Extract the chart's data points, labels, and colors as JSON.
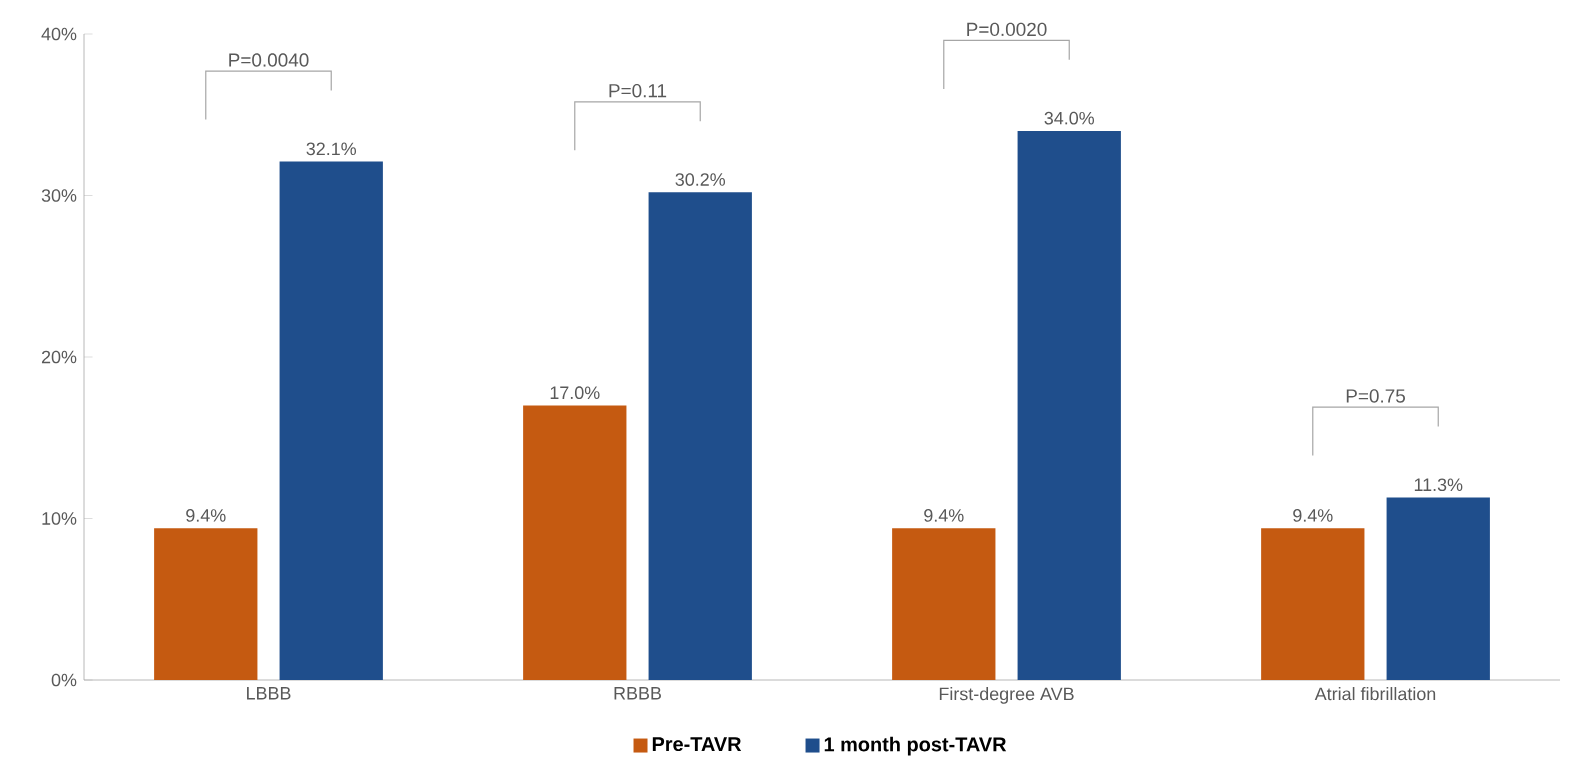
{
  "chart_data": {
    "type": "bar",
    "categories": [
      "LBBB",
      "RBBB",
      "First-degree AVB",
      "Atrial fibrillation"
    ],
    "series": [
      {
        "name": "Pre-TAVR",
        "color": "#c55a11",
        "values": [
          9.4,
          17.0,
          9.4,
          9.4
        ],
        "value_labels": [
          "9.4%",
          "17.0%",
          "9.4%",
          "9.4%"
        ]
      },
      {
        "name": "1 month post-TAVR",
        "color": "#1f4e8c",
        "values": [
          32.1,
          30.2,
          34.0,
          11.3
        ],
        "value_labels": [
          "32.1%",
          "30.2%",
          "34.0%",
          "11.3%"
        ]
      }
    ],
    "ylim": [
      0,
      40
    ],
    "yticks": [
      {
        "value": 0,
        "label": "0%"
      },
      {
        "value": 10,
        "label": "10%"
      },
      {
        "value": 20,
        "label": "20%"
      },
      {
        "value": 30,
        "label": "30%"
      },
      {
        "value": 40,
        "label": "40%"
      }
    ],
    "annotations": [
      "P=0.0040",
      "P=0.11",
      "P=0.0020",
      "P=0.75"
    ],
    "legend": "bottom",
    "grid": false
  }
}
